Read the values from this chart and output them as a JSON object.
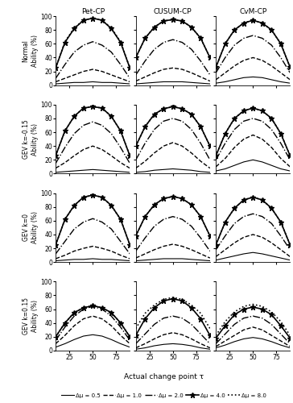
{
  "col_titles": [
    "Pet-CP",
    "CUSUM-CP",
    "CvM-CP"
  ],
  "row_labels": [
    "Normal\nAbility (%)",
    "GEV k=-0.15\nAbility (%)",
    "GEV k=0\nAbility (%)",
    "GEV k=0.15\nAbility (%)"
  ],
  "xlabel": "Actual change point τ",
  "legend_labels": [
    "Δμ = 0.5",
    "Δμ = 1.0",
    "Δμ = 2.0",
    "Δμ = 4.0",
    "Δμ = 8.0"
  ],
  "tau": [
    10,
    20,
    30,
    40,
    50,
    60,
    70,
    80,
    90
  ],
  "data": {
    "Normal": {
      "Pet-CP": {
        "0.5": [
          2,
          3,
          4,
          4,
          5,
          4,
          4,
          3,
          2
        ],
        "1.0": [
          5,
          10,
          15,
          20,
          23,
          20,
          15,
          10,
          5
        ],
        "2.0": [
          10,
          30,
          48,
          58,
          63,
          58,
          48,
          30,
          10
        ],
        "4.0": [
          25,
          62,
          82,
          94,
          97,
          94,
          82,
          62,
          25
        ],
        "8.0": [
          25,
          63,
          83,
          94,
          97,
          94,
          83,
          63,
          25
        ]
      },
      "CUSUM-CP": {
        "0.5": [
          2,
          3,
          4,
          5,
          5,
          5,
          4,
          3,
          2
        ],
        "1.0": [
          6,
          12,
          18,
          23,
          25,
          23,
          18,
          12,
          6
        ],
        "2.0": [
          15,
          35,
          52,
          62,
          66,
          62,
          52,
          35,
          15
        ],
        "4.0": [
          40,
          68,
          84,
          93,
          95,
          93,
          84,
          68,
          40
        ],
        "8.0": [
          40,
          68,
          84,
          93,
          95,
          93,
          84,
          68,
          40
        ]
      },
      "CvM-CP": {
        "0.5": [
          3,
          5,
          8,
          11,
          12,
          11,
          8,
          5,
          3
        ],
        "1.0": [
          8,
          18,
          28,
          36,
          40,
          36,
          28,
          18,
          8
        ],
        "2.0": [
          18,
          40,
          58,
          68,
          72,
          68,
          58,
          40,
          18
        ],
        "4.0": [
          26,
          60,
          80,
          90,
          94,
          90,
          80,
          60,
          26
        ],
        "8.0": [
          26,
          60,
          80,
          90,
          94,
          90,
          80,
          60,
          26
        ]
      }
    },
    "GEV_neg": {
      "Pet-CP": {
        "0.5": [
          2,
          3,
          4,
          5,
          6,
          5,
          4,
          3,
          2
        ],
        "1.0": [
          8,
          16,
          26,
          35,
          40,
          35,
          26,
          16,
          8
        ],
        "2.0": [
          15,
          38,
          58,
          70,
          75,
          70,
          58,
          38,
          15
        ],
        "4.0": [
          26,
          62,
          83,
          95,
          97,
          95,
          83,
          62,
          26
        ],
        "8.0": [
          26,
          62,
          83,
          95,
          97,
          95,
          83,
          62,
          26
        ]
      },
      "CUSUM-CP": {
        "0.5": [
          2,
          3,
          5,
          6,
          7,
          6,
          5,
          3,
          2
        ],
        "1.0": [
          8,
          18,
          30,
          40,
          45,
          40,
          30,
          18,
          8
        ],
        "2.0": [
          20,
          44,
          64,
          76,
          80,
          76,
          64,
          44,
          20
        ],
        "4.0": [
          40,
          68,
          86,
          94,
          97,
          94,
          86,
          68,
          40
        ],
        "8.0": [
          40,
          68,
          86,
          94,
          97,
          94,
          86,
          68,
          40
        ]
      },
      "CvM-CP": {
        "0.5": [
          4,
          7,
          12,
          17,
          20,
          17,
          12,
          7,
          4
        ],
        "1.0": [
          10,
          22,
          38,
          50,
          56,
          50,
          38,
          22,
          10
        ],
        "2.0": [
          20,
          44,
          64,
          76,
          80,
          76,
          64,
          44,
          20
        ],
        "4.0": [
          26,
          58,
          80,
          91,
          95,
          91,
          80,
          58,
          26
        ],
        "8.0": [
          26,
          58,
          80,
          91,
          95,
          91,
          80,
          58,
          26
        ]
      }
    },
    "GEV_zero": {
      "Pet-CP": {
        "0.5": [
          2,
          3,
          4,
          4,
          5,
          4,
          4,
          3,
          2
        ],
        "1.0": [
          5,
          10,
          16,
          20,
          23,
          20,
          16,
          10,
          5
        ],
        "2.0": [
          12,
          30,
          48,
          58,
          63,
          58,
          48,
          30,
          12
        ],
        "4.0": [
          25,
          62,
          82,
          94,
          97,
          94,
          82,
          62,
          25
        ],
        "8.0": [
          25,
          62,
          82,
          94,
          97,
          94,
          82,
          62,
          25
        ]
      },
      "CUSUM-CP": {
        "0.5": [
          2,
          3,
          4,
          5,
          5,
          5,
          4,
          3,
          2
        ],
        "1.0": [
          6,
          12,
          18,
          23,
          26,
          23,
          18,
          12,
          6
        ],
        "2.0": [
          16,
          35,
          52,
          62,
          66,
          62,
          52,
          35,
          16
        ],
        "4.0": [
          38,
          66,
          83,
          92,
          95,
          92,
          83,
          66,
          38
        ],
        "8.0": [
          38,
          66,
          83,
          92,
          95,
          92,
          83,
          66,
          38
        ]
      },
      "CvM-CP": {
        "0.5": [
          3,
          6,
          9,
          12,
          14,
          12,
          9,
          6,
          3
        ],
        "1.0": [
          8,
          18,
          28,
          36,
          40,
          36,
          28,
          18,
          8
        ],
        "2.0": [
          18,
          38,
          56,
          66,
          70,
          66,
          56,
          38,
          18
        ],
        "4.0": [
          25,
          58,
          78,
          90,
          94,
          90,
          78,
          58,
          25
        ],
        "8.0": [
          25,
          58,
          78,
          90,
          94,
          90,
          78,
          58,
          25
        ]
      }
    },
    "GEV_pos": {
      "Pet-CP": {
        "0.5": [
          5,
          10,
          16,
          21,
          23,
          21,
          16,
          10,
          5
        ],
        "1.0": [
          10,
          22,
          36,
          46,
          50,
          46,
          36,
          22,
          10
        ],
        "2.0": [
          15,
          34,
          50,
          60,
          64,
          60,
          50,
          34,
          15
        ],
        "4.0": [
          20,
          40,
          55,
          62,
          65,
          62,
          55,
          40,
          20
        ],
        "8.0": [
          20,
          40,
          55,
          62,
          65,
          62,
          55,
          40,
          20
        ]
      },
      "CUSUM-CP": {
        "0.5": [
          2,
          4,
          7,
          9,
          10,
          9,
          7,
          4,
          2
        ],
        "1.0": [
          4,
          10,
          17,
          23,
          26,
          23,
          17,
          10,
          4
        ],
        "2.0": [
          10,
          24,
          38,
          47,
          50,
          47,
          38,
          24,
          10
        ],
        "4.0": [
          22,
          46,
          62,
          72,
          75,
          72,
          62,
          46,
          22
        ],
        "8.0": [
          32,
          54,
          66,
          74,
          77,
          74,
          66,
          54,
          32
        ]
      },
      "CvM-CP": {
        "0.5": [
          4,
          8,
          13,
          17,
          19,
          17,
          13,
          8,
          4
        ],
        "1.0": [
          6,
          14,
          22,
          30,
          34,
          30,
          22,
          14,
          6
        ],
        "2.0": [
          10,
          24,
          38,
          47,
          50,
          47,
          38,
          24,
          10
        ],
        "4.0": [
          18,
          36,
          52,
          60,
          63,
          60,
          52,
          36,
          18
        ],
        "8.0": [
          22,
          42,
          56,
          64,
          67,
          64,
          56,
          42,
          22
        ]
      }
    }
  },
  "line_styles": [
    {
      "linestyle": "-",
      "marker": null,
      "linewidth": 0.8
    },
    {
      "linestyle": "--",
      "marker": null,
      "linewidth": 1.0
    },
    {
      "linestyle": "-.",
      "marker": null,
      "linewidth": 1.0
    },
    {
      "linestyle": "-",
      "marker": "*",
      "linewidth": 1.2,
      "markersize": 5
    },
    {
      "linestyle": ":",
      "marker": null,
      "linewidth": 1.2
    }
  ],
  "ylim": [
    0,
    100
  ],
  "yticks": [
    0,
    20,
    40,
    60,
    80,
    100
  ],
  "xticks": [
    25,
    50,
    75
  ],
  "xlim": [
    10,
    90
  ]
}
